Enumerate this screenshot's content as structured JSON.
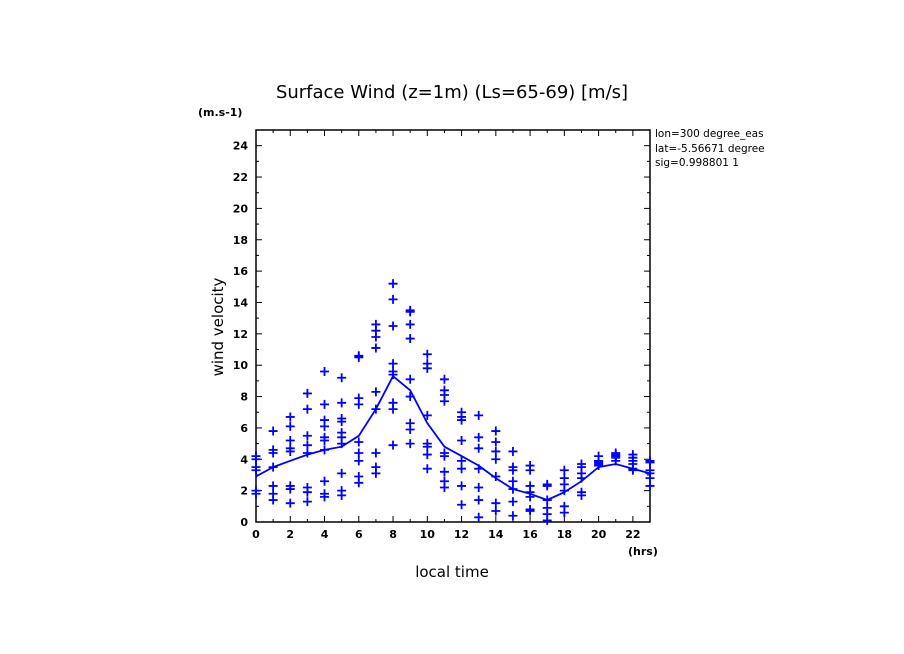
{
  "chart_data": {
    "type": "scatter",
    "title": "Surface Wind (z=1m) (Ls=65-69) [m/s]",
    "ylabel": "wind velocity",
    "xlabel": "local time",
    "y_unit": "(m.s-1)",
    "x_unit": "(hrs)",
    "xlim": [
      0,
      23
    ],
    "ylim": [
      0,
      25
    ],
    "xticks": [
      0,
      2,
      4,
      6,
      8,
      10,
      12,
      14,
      16,
      18,
      20,
      22
    ],
    "yticks": [
      0,
      2,
      4,
      6,
      8,
      10,
      12,
      14,
      16,
      18,
      20,
      22,
      24
    ],
    "info_lines": [
      "lon=300 degree_eas",
      "lat=-5.56671 degree",
      "sig=0.998801 1"
    ],
    "color": "#0000ff",
    "series": [
      {
        "type": "scatter",
        "points": [
          [
            0,
            1.8
          ],
          [
            0,
            2.0
          ],
          [
            0,
            3.3
          ],
          [
            0,
            3.5
          ],
          [
            0,
            4.0
          ],
          [
            0,
            4.2
          ],
          [
            1,
            1.4
          ],
          [
            1,
            1.8
          ],
          [
            1,
            2.3
          ],
          [
            1,
            3.5
          ],
          [
            1,
            4.4
          ],
          [
            1,
            4.6
          ],
          [
            1,
            5.8
          ],
          [
            2,
            1.2
          ],
          [
            2,
            2.1
          ],
          [
            2,
            2.3
          ],
          [
            2,
            4.5
          ],
          [
            2,
            4.7
          ],
          [
            2,
            5.2
          ],
          [
            2,
            6.1
          ],
          [
            2,
            6.7
          ],
          [
            3,
            1.3
          ],
          [
            3,
            1.9
          ],
          [
            3,
            2.2
          ],
          [
            3,
            4.4
          ],
          [
            3,
            4.9
          ],
          [
            3,
            5.5
          ],
          [
            3,
            7.2
          ],
          [
            3,
            8.2
          ],
          [
            4,
            1.6
          ],
          [
            4,
            1.8
          ],
          [
            4,
            2.6
          ],
          [
            4,
            4.6
          ],
          [
            4,
            5.2
          ],
          [
            4,
            5.4
          ],
          [
            4,
            6.1
          ],
          [
            4,
            6.5
          ],
          [
            4,
            7.5
          ],
          [
            4,
            9.6
          ],
          [
            5,
            1.7
          ],
          [
            5,
            2.0
          ],
          [
            5,
            3.1
          ],
          [
            5,
            5.0
          ],
          [
            5,
            5.4
          ],
          [
            5,
            5.7
          ],
          [
            5,
            6.4
          ],
          [
            5,
            6.6
          ],
          [
            5,
            7.6
          ],
          [
            5,
            9.2
          ],
          [
            6,
            2.5
          ],
          [
            6,
            2.9
          ],
          [
            6,
            3.9
          ],
          [
            6,
            4.4
          ],
          [
            6,
            5.1
          ],
          [
            6,
            7.5
          ],
          [
            6,
            7.9
          ],
          [
            6,
            10.5
          ],
          [
            6,
            10.6
          ],
          [
            7,
            3.1
          ],
          [
            7,
            3.5
          ],
          [
            7,
            4.4
          ],
          [
            7,
            7.2
          ],
          [
            7,
            8.3
          ],
          [
            7,
            11.1
          ],
          [
            7,
            11.8
          ],
          [
            7,
            12.2
          ],
          [
            7,
            12.6
          ],
          [
            8,
            4.9
          ],
          [
            8,
            7.2
          ],
          [
            8,
            7.6
          ],
          [
            8,
            9.4
          ],
          [
            8,
            9.6
          ],
          [
            8,
            10.1
          ],
          [
            8,
            12.5
          ],
          [
            8,
            14.2
          ],
          [
            8,
            15.2
          ],
          [
            9,
            5.0
          ],
          [
            9,
            5.9
          ],
          [
            9,
            6.3
          ],
          [
            9,
            8.0
          ],
          [
            9,
            9.1
          ],
          [
            9,
            11.7
          ],
          [
            9,
            12.6
          ],
          [
            9,
            13.4
          ],
          [
            9,
            13.5
          ],
          [
            10,
            3.4
          ],
          [
            10,
            4.3
          ],
          [
            10,
            4.8
          ],
          [
            10,
            5.0
          ],
          [
            10,
            6.8
          ],
          [
            10,
            9.8
          ],
          [
            10,
            10.1
          ],
          [
            10,
            10.7
          ],
          [
            11,
            2.2
          ],
          [
            11,
            2.6
          ],
          [
            11,
            3.2
          ],
          [
            11,
            4.2
          ],
          [
            11,
            4.4
          ],
          [
            11,
            7.7
          ],
          [
            11,
            8.1
          ],
          [
            11,
            8.4
          ],
          [
            11,
            9.1
          ],
          [
            12,
            1.1
          ],
          [
            12,
            2.3
          ],
          [
            12,
            3.4
          ],
          [
            12,
            3.9
          ],
          [
            12,
            5.2
          ],
          [
            12,
            6.5
          ],
          [
            12,
            6.7
          ],
          [
            12,
            7.0
          ],
          [
            13,
            0.3
          ],
          [
            13,
            1.4
          ],
          [
            13,
            2.2
          ],
          [
            13,
            3.4
          ],
          [
            13,
            4.7
          ],
          [
            13,
            5.4
          ],
          [
            13,
            6.8
          ],
          [
            14,
            0.7
          ],
          [
            14,
            1.2
          ],
          [
            14,
            2.9
          ],
          [
            14,
            4.0
          ],
          [
            14,
            4.5
          ],
          [
            14,
            5.1
          ],
          [
            14,
            5.8
          ],
          [
            15,
            0.4
          ],
          [
            15,
            1.3
          ],
          [
            15,
            2.1
          ],
          [
            15,
            2.6
          ],
          [
            15,
            3.3
          ],
          [
            15,
            3.5
          ],
          [
            15,
            4.5
          ],
          [
            16,
            0.7
          ],
          [
            16,
            0.8
          ],
          [
            16,
            1.6
          ],
          [
            16,
            1.9
          ],
          [
            16,
            2.3
          ],
          [
            16,
            3.3
          ],
          [
            16,
            3.6
          ],
          [
            17,
            0.1
          ],
          [
            17,
            0.5
          ],
          [
            17,
            0.9
          ],
          [
            17,
            1.4
          ],
          [
            17,
            2.3
          ],
          [
            17,
            2.4
          ],
          [
            18,
            0.6
          ],
          [
            18,
            1.0
          ],
          [
            18,
            2.0
          ],
          [
            18,
            2.4
          ],
          [
            18,
            2.8
          ],
          [
            18,
            3.3
          ],
          [
            19,
            1.7
          ],
          [
            19,
            1.9
          ],
          [
            19,
            2.8
          ],
          [
            19,
            3.1
          ],
          [
            19,
            3.5
          ],
          [
            19,
            3.7
          ],
          [
            20,
            3.6
          ],
          [
            20,
            3.7
          ],
          [
            20,
            3.8
          ],
          [
            20,
            3.9
          ],
          [
            20,
            4.2
          ],
          [
            21,
            3.9
          ],
          [
            21,
            4.1
          ],
          [
            21,
            4.2
          ],
          [
            21,
            4.3
          ],
          [
            21,
            4.4
          ],
          [
            22,
            3.3
          ],
          [
            22,
            3.4
          ],
          [
            22,
            3.7
          ],
          [
            22,
            3.9
          ],
          [
            22,
            4.1
          ],
          [
            22,
            4.3
          ],
          [
            23,
            2.3
          ],
          [
            23,
            2.8
          ],
          [
            23,
            3.1
          ],
          [
            23,
            3.3
          ],
          [
            23,
            3.8
          ],
          [
            23,
            3.9
          ]
        ]
      },
      {
        "type": "line",
        "points": [
          [
            0,
            2.9
          ],
          [
            1,
            3.5
          ],
          [
            2,
            3.9
          ],
          [
            3,
            4.3
          ],
          [
            4,
            4.6
          ],
          [
            5,
            4.8
          ],
          [
            6,
            5.5
          ],
          [
            7,
            7.2
          ],
          [
            8,
            9.3
          ],
          [
            9,
            8.4
          ],
          [
            10,
            6.3
          ],
          [
            11,
            4.8
          ],
          [
            12,
            4.2
          ],
          [
            13,
            3.6
          ],
          [
            14,
            2.8
          ],
          [
            15,
            2.1
          ],
          [
            16,
            1.8
          ],
          [
            17,
            1.4
          ],
          [
            18,
            1.9
          ],
          [
            19,
            2.6
          ],
          [
            20,
            3.5
          ],
          [
            21,
            3.7
          ],
          [
            22,
            3.4
          ],
          [
            23,
            3.1
          ]
        ]
      }
    ]
  }
}
